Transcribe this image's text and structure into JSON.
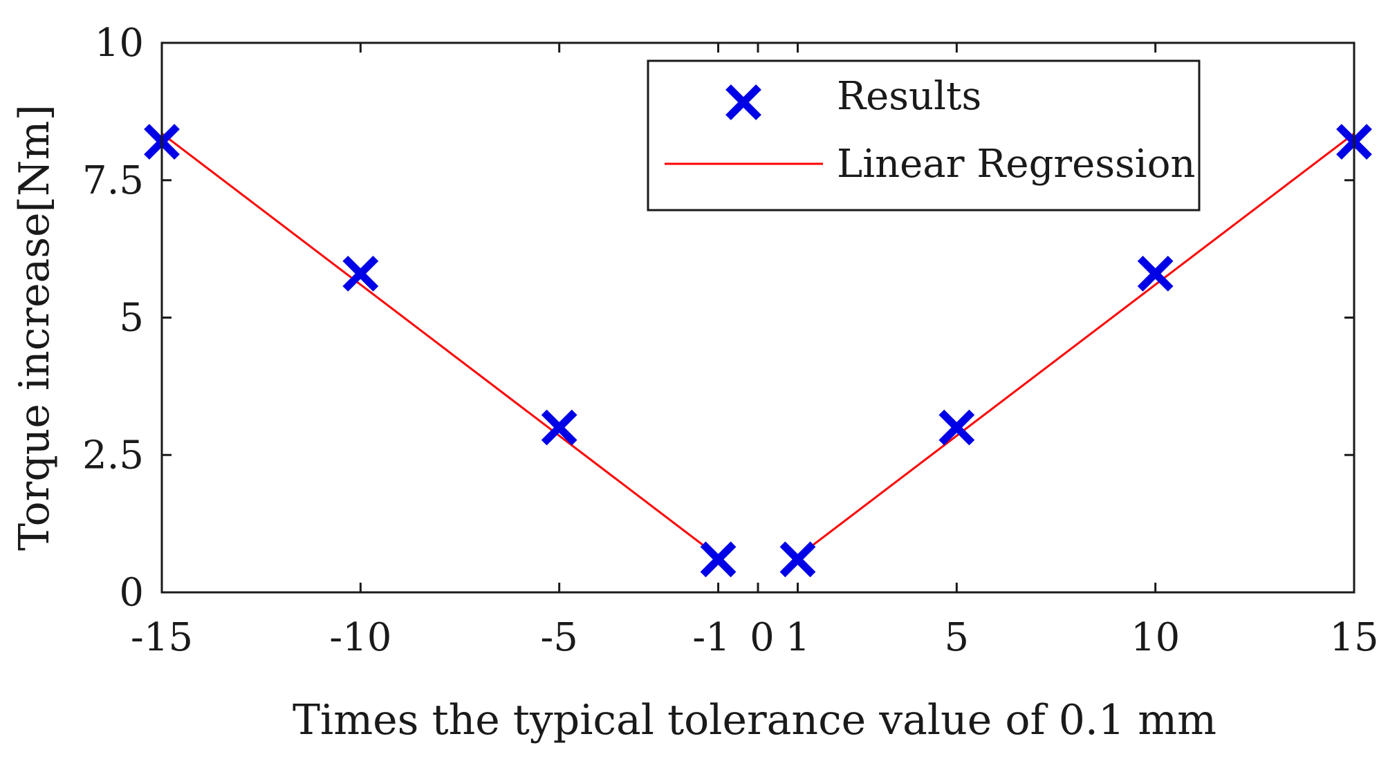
{
  "chart_data": {
    "type": "scatter",
    "title": "",
    "xlabel": "Times the typical tolerance value of 0.1 mm",
    "ylabel": "Torque increase[Nm]",
    "xlim": [
      -15,
      15
    ],
    "ylim": [
      0,
      10
    ],
    "grid": false,
    "x_ticks": [
      -15,
      -10,
      -5,
      -1,
      0,
      1,
      5,
      10,
      15
    ],
    "x_tick_labels": [
      "-15",
      "-10",
      "-5",
      "-1",
      "0",
      "1",
      "5",
      "10",
      "15"
    ],
    "y_ticks": [
      0,
      2.5,
      5,
      7.5,
      10
    ],
    "y_tick_labels": [
      "0",
      "2.5",
      "5",
      "7.5",
      "10"
    ],
    "legend_position": "top-right",
    "colors": {
      "results": "#0000e6",
      "regression": "#ff0000",
      "axes": "#1a1a1a"
    },
    "series": [
      {
        "name": "Results",
        "type": "scatter",
        "marker": "x",
        "x": [
          -15,
          -10,
          -5,
          -1,
          1,
          5,
          10,
          15
        ],
        "y": [
          8.2,
          5.8,
          3.0,
          0.6,
          0.6,
          3.0,
          5.8,
          8.2
        ]
      },
      {
        "name": "Linear Regression",
        "type": "line",
        "segments": [
          {
            "x": [
              -15,
              -1
            ],
            "y": [
              8.35,
              0.65
            ]
          },
          {
            "x": [
              1,
              15
            ],
            "y": [
              0.65,
              8.35
            ]
          }
        ]
      }
    ]
  }
}
